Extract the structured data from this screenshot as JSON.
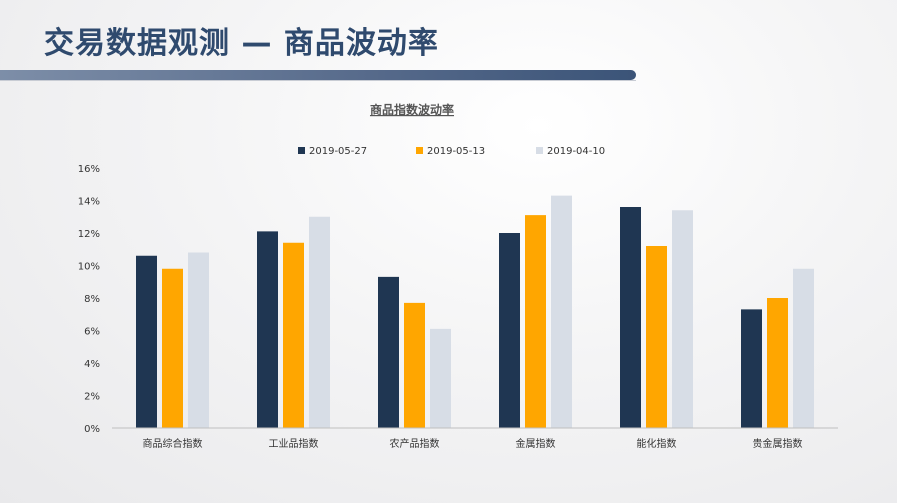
{
  "header": {
    "title": "交易数据观测 — 商品波动率"
  },
  "chart_data": {
    "type": "bar",
    "title": "商品指数波动率",
    "categories": [
      "商品综合指数",
      "工业品指数",
      "农产品指数",
      "金属指数",
      "能化指数",
      "贵金属指数"
    ],
    "series": [
      {
        "name": "2019-05-27",
        "color": "#1f3652",
        "values": [
          10.6,
          12.1,
          9.3,
          12.0,
          13.6,
          7.3
        ]
      },
      {
        "name": "2019-05-13",
        "color": "#ffa600",
        "values": [
          9.8,
          11.4,
          7.7,
          13.1,
          11.2,
          8.0
        ]
      },
      {
        "name": "2019-04-10",
        "color": "#d7dde6",
        "values": [
          10.8,
          13.0,
          6.1,
          14.3,
          13.4,
          9.8
        ]
      }
    ],
    "y_ticks": [
      "0%",
      "2%",
      "4%",
      "6%",
      "8%",
      "10%",
      "12%",
      "14%",
      "16%"
    ],
    "ylim": [
      0,
      16
    ],
    "legend_position": "top",
    "grid": false
  }
}
